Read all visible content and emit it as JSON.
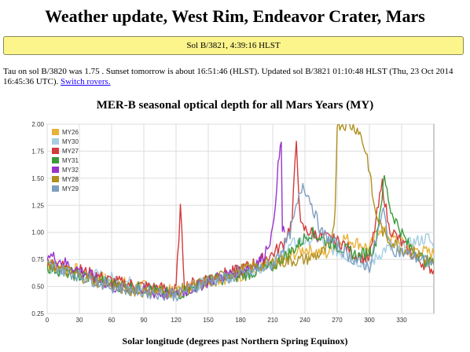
{
  "page": {
    "title": "Weather update, West Rim, Endeavor Crater, Mars",
    "status": "Sol B/3821, 4:39:16 HLST",
    "info_text": "Tau on sol B/3820 was 1.75 . Sunset tomorrow is about 16:51:46 (HLST). Updated sol B/3821 01:10:48 HLST (Thu, 23 Oct 2014 16:45:36 UTC).",
    "switch_link": "Switch rovers."
  },
  "chart_data": {
    "type": "line",
    "title": "MER-B seasonal optical depth for all Mars Years (MY)",
    "xlabel": "Solar longitude (degrees past Northern Spring Equinox)",
    "ylabel": "",
    "xlim": [
      0,
      360
    ],
    "ylim": [
      0.25,
      2.0
    ],
    "xticks": [
      "0",
      "30",
      "60",
      "90",
      "120",
      "150",
      "180",
      "210",
      "240",
      "270",
      "300",
      "330"
    ],
    "yticks": [
      "2.00",
      "1.75",
      "1.50",
      "1.25",
      "1.00",
      "0.75",
      "0.50",
      "0.25"
    ],
    "grid": true,
    "legend_position": "top-left",
    "series": [
      {
        "name": "MY26",
        "color": "#e8b23a",
        "points": [
          [
            0,
            0.7
          ],
          [
            30,
            0.65
          ],
          [
            60,
            0.55
          ],
          [
            90,
            0.5
          ],
          [
            120,
            0.45
          ],
          [
            150,
            0.55
          ],
          [
            180,
            0.6
          ],
          [
            210,
            0.7
          ],
          [
            240,
            0.85
          ],
          [
            260,
            0.8
          ],
          [
            275,
            0.95
          ],
          [
            290,
            0.9
          ],
          [
            300,
            0.85
          ],
          [
            310,
            1.05
          ],
          [
            320,
            0.95
          ],
          [
            340,
            0.85
          ],
          [
            360,
            0.8
          ]
        ]
      },
      {
        "name": "MY30",
        "color": "#a6cee3",
        "points": [
          [
            0,
            0.68
          ],
          [
            30,
            0.62
          ],
          [
            60,
            0.58
          ],
          [
            90,
            0.5
          ],
          [
            120,
            0.44
          ],
          [
            150,
            0.55
          ],
          [
            180,
            0.62
          ],
          [
            210,
            0.72
          ],
          [
            230,
            0.9
          ],
          [
            250,
            0.95
          ],
          [
            265,
            0.85
          ],
          [
            285,
            0.75
          ],
          [
            300,
            0.7
          ],
          [
            315,
            0.85
          ],
          [
            325,
            0.85
          ],
          [
            345,
            0.92
          ],
          [
            355,
            0.95
          ],
          [
            360,
            0.85
          ]
        ]
      },
      {
        "name": "MY27",
        "color": "#d43a3a",
        "points": [
          [
            0,
            0.72
          ],
          [
            30,
            0.65
          ],
          [
            60,
            0.55
          ],
          [
            90,
            0.5
          ],
          [
            110,
            0.48
          ],
          [
            118,
            0.45
          ],
          [
            120,
            0.48
          ],
          [
            124,
            1.22
          ],
          [
            128,
            0.5
          ],
          [
            150,
            0.58
          ],
          [
            180,
            0.65
          ],
          [
            210,
            0.8
          ],
          [
            220,
            0.9
          ],
          [
            228,
            1.1
          ],
          [
            232,
            1.85
          ],
          [
            236,
            1.05
          ],
          [
            245,
            1.0
          ],
          [
            260,
            0.95
          ],
          [
            275,
            0.9
          ],
          [
            285,
            0.8
          ],
          [
            300,
            0.75
          ],
          [
            312,
            1.45
          ],
          [
            318,
            1.05
          ],
          [
            330,
            0.9
          ],
          [
            345,
            0.75
          ],
          [
            360,
            0.65
          ]
        ]
      },
      {
        "name": "MY31",
        "color": "#3a9a3a",
        "points": [
          [
            0,
            0.68
          ],
          [
            30,
            0.6
          ],
          [
            60,
            0.52
          ],
          [
            90,
            0.48
          ],
          [
            120,
            0.42
          ],
          [
            150,
            0.55
          ],
          [
            180,
            0.6
          ],
          [
            210,
            0.68
          ],
          [
            230,
            0.85
          ],
          [
            245,
            1.0
          ],
          [
            260,
            0.92
          ],
          [
            275,
            0.85
          ],
          [
            290,
            0.78
          ],
          [
            305,
            0.85
          ],
          [
            314,
            1.5
          ],
          [
            320,
            1.2
          ],
          [
            335,
            0.9
          ],
          [
            350,
            0.75
          ],
          [
            360,
            0.7
          ]
        ]
      },
      {
        "name": "MY32",
        "color": "#9933cc",
        "points": [
          [
            0,
            0.8
          ],
          [
            30,
            0.65
          ],
          [
            60,
            0.5
          ],
          [
            90,
            0.45
          ],
          [
            120,
            0.42
          ],
          [
            150,
            0.55
          ],
          [
            180,
            0.65
          ],
          [
            200,
            0.75
          ],
          [
            210,
            1.0
          ],
          [
            215,
            1.6
          ],
          [
            218,
            1.85
          ],
          [
            219,
            1.0
          ],
          [
            221,
            1.0
          ]
        ]
      },
      {
        "name": "MY28",
        "color": "#b0901f",
        "points": [
          [
            0,
            0.7
          ],
          [
            30,
            0.6
          ],
          [
            60,
            0.5
          ],
          [
            90,
            0.45
          ],
          [
            120,
            0.45
          ],
          [
            150,
            0.55
          ],
          [
            180,
            0.65
          ],
          [
            210,
            0.72
          ],
          [
            240,
            0.75
          ],
          [
            255,
            0.8
          ],
          [
            265,
            0.9
          ],
          [
            268,
            1.2
          ],
          [
            270,
            2.0
          ],
          [
            275,
            2.0
          ],
          [
            280,
            2.0
          ],
          [
            290,
            1.95
          ],
          [
            298,
            1.7
          ],
          [
            305,
            1.2
          ],
          [
            315,
            0.95
          ],
          [
            330,
            0.85
          ],
          [
            345,
            0.8
          ],
          [
            360,
            0.7
          ]
        ]
      },
      {
        "name": "MY29",
        "color": "#7f9fbf",
        "points": [
          [
            0,
            0.7
          ],
          [
            30,
            0.6
          ],
          [
            60,
            0.5
          ],
          [
            90,
            0.45
          ],
          [
            120,
            0.42
          ],
          [
            150,
            0.55
          ],
          [
            180,
            0.6
          ],
          [
            210,
            0.7
          ],
          [
            225,
            0.95
          ],
          [
            238,
            1.45
          ],
          [
            245,
            1.3
          ],
          [
            255,
            1.0
          ],
          [
            270,
            0.88
          ],
          [
            285,
            0.75
          ],
          [
            300,
            0.68
          ],
          [
            313,
            1.2
          ],
          [
            320,
            0.85
          ],
          [
            340,
            0.78
          ],
          [
            360,
            0.7
          ]
        ]
      }
    ]
  }
}
